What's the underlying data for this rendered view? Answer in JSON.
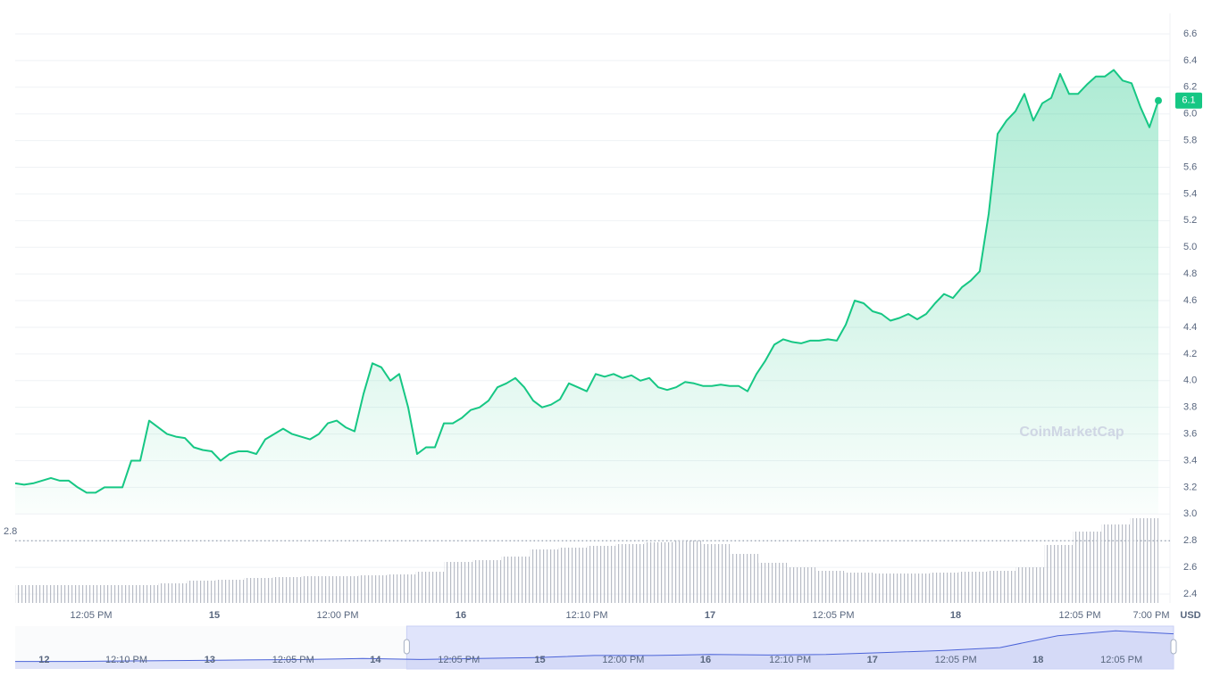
{
  "chart_data": {
    "type": "line",
    "color": "#16c784",
    "currency": "USD",
    "current_label": "6.1",
    "reference_label": "2.8",
    "reference_value": 2.8,
    "watermark": "CoinMarketCap",
    "xlim": [
      0,
      128
    ],
    "ylim": [
      2.4,
      6.6
    ],
    "yticks": [
      {
        "value": 2.4,
        "label": "2.4"
      },
      {
        "value": 2.6,
        "label": "2.6"
      },
      {
        "value": 2.8,
        "label": "2.8"
      },
      {
        "value": 3.0,
        "label": "3.0"
      },
      {
        "value": 3.2,
        "label": "3.2"
      },
      {
        "value": 3.4,
        "label": "3.4"
      },
      {
        "value": 3.6,
        "label": "3.6"
      },
      {
        "value": 3.8,
        "label": "3.8"
      },
      {
        "value": 4.0,
        "label": "4.0"
      },
      {
        "value": 4.2,
        "label": "4.2"
      },
      {
        "value": 4.4,
        "label": "4.4"
      },
      {
        "value": 4.6,
        "label": "4.6"
      },
      {
        "value": 4.8,
        "label": "4.8"
      },
      {
        "value": 5.0,
        "label": "5.0"
      },
      {
        "value": 5.2,
        "label": "5.2"
      },
      {
        "value": 5.4,
        "label": "5.4"
      },
      {
        "value": 5.6,
        "label": "5.6"
      },
      {
        "value": 5.8,
        "label": "5.8"
      },
      {
        "value": 6.0,
        "label": "6.0"
      },
      {
        "value": 6.2,
        "label": "6.2"
      },
      {
        "value": 6.4,
        "label": "6.4"
      },
      {
        "value": 6.6,
        "label": "6.6"
      }
    ],
    "xticks": [
      {
        "value": 8.5,
        "label": "12:05 PM"
      },
      {
        "value": 22.3,
        "label": "15"
      },
      {
        "value": 36.1,
        "label": "12:00 PM"
      },
      {
        "value": 49.9,
        "label": "16"
      },
      {
        "value": 64,
        "label": "12:10 PM"
      },
      {
        "value": 77.8,
        "label": "17"
      },
      {
        "value": 91.6,
        "label": "12:05 PM"
      },
      {
        "value": 105.3,
        "label": "18"
      },
      {
        "value": 119.2,
        "label": "12:05 PM"
      },
      {
        "value": 127.2,
        "label": "7:00 PM"
      }
    ],
    "values": [
      3.23,
      3.22,
      3.23,
      3.25,
      3.27,
      3.25,
      3.25,
      3.2,
      3.16,
      3.16,
      3.2,
      3.2,
      3.2,
      3.4,
      3.4,
      3.7,
      3.65,
      3.6,
      3.58,
      3.57,
      3.5,
      3.48,
      3.47,
      3.4,
      3.45,
      3.47,
      3.47,
      3.45,
      3.56,
      3.6,
      3.64,
      3.6,
      3.58,
      3.56,
      3.6,
      3.68,
      3.7,
      3.65,
      3.62,
      3.9,
      4.13,
      4.1,
      4.0,
      4.05,
      3.8,
      3.45,
      3.5,
      3.5,
      3.68,
      3.68,
      3.72,
      3.78,
      3.8,
      3.85,
      3.95,
      3.98,
      4.02,
      3.95,
      3.85,
      3.8,
      3.82,
      3.86,
      3.98,
      3.95,
      3.92,
      4.05,
      4.03,
      4.05,
      4.02,
      4.04,
      4.0,
      4.02,
      3.95,
      3.93,
      3.95,
      3.99,
      3.98,
      3.96,
      3.96,
      3.97,
      3.96,
      3.96,
      3.92,
      4.05,
      4.15,
      4.27,
      4.31,
      4.29,
      4.28,
      4.3,
      4.3,
      4.31,
      4.3,
      4.42,
      4.6,
      4.58,
      4.52,
      4.5,
      4.45,
      4.47,
      4.5,
      4.46,
      4.5,
      4.58,
      4.65,
      4.62,
      4.7,
      4.75,
      4.82,
      5.25,
      5.85,
      5.95,
      6.02,
      6.15,
      5.95,
      6.08,
      6.12,
      6.3,
      6.15,
      6.15,
      6.22,
      6.28,
      6.28,
      6.33,
      6.25,
      6.23,
      6.05,
      5.9,
      6.1
    ],
    "volume": {
      "vlim": [
        0,
        100
      ],
      "values": [
        20,
        20,
        20,
        20,
        20,
        22,
        25,
        26,
        28,
        29,
        30,
        30,
        31,
        32,
        35,
        46,
        48,
        52,
        60,
        62,
        64,
        66,
        68,
        70,
        66,
        55,
        45,
        40,
        36,
        34,
        33,
        33,
        34,
        35,
        36,
        40,
        65,
        80,
        88,
        95
      ]
    },
    "navigator": {
      "xlim": [
        0,
        100
      ],
      "ylim": [
        2.8,
        6.6
      ],
      "window": [
        33.8,
        100
      ],
      "ticks": [
        {
          "value": 2.5,
          "label": "12"
        },
        {
          "value": 9.6,
          "label": "12:10 PM"
        },
        {
          "value": 16.8,
          "label": "13"
        },
        {
          "value": 24.0,
          "label": "12:05 PM"
        },
        {
          "value": 31.1,
          "label": "14"
        },
        {
          "value": 38.3,
          "label": "12:05 PM"
        },
        {
          "value": 45.3,
          "label": "15"
        },
        {
          "value": 52.5,
          "label": "12:00 PM"
        },
        {
          "value": 59.6,
          "label": "16"
        },
        {
          "value": 66.9,
          "label": "12:10 PM"
        },
        {
          "value": 74.0,
          "label": "17"
        },
        {
          "value": 81.2,
          "label": "12:05 PM"
        },
        {
          "value": 88.3,
          "label": "18"
        },
        {
          "value": 95.5,
          "label": "12:05 PM"
        }
      ],
      "values": [
        3.2,
        3.2,
        3.25,
        3.3,
        3.35,
        3.4,
        3.5,
        3.4,
        3.5,
        3.6,
        3.8,
        3.8,
        3.9,
        3.85,
        3.9,
        4.1,
        4.3,
        4.6,
        5.8,
        6.3,
        6.0
      ]
    }
  }
}
